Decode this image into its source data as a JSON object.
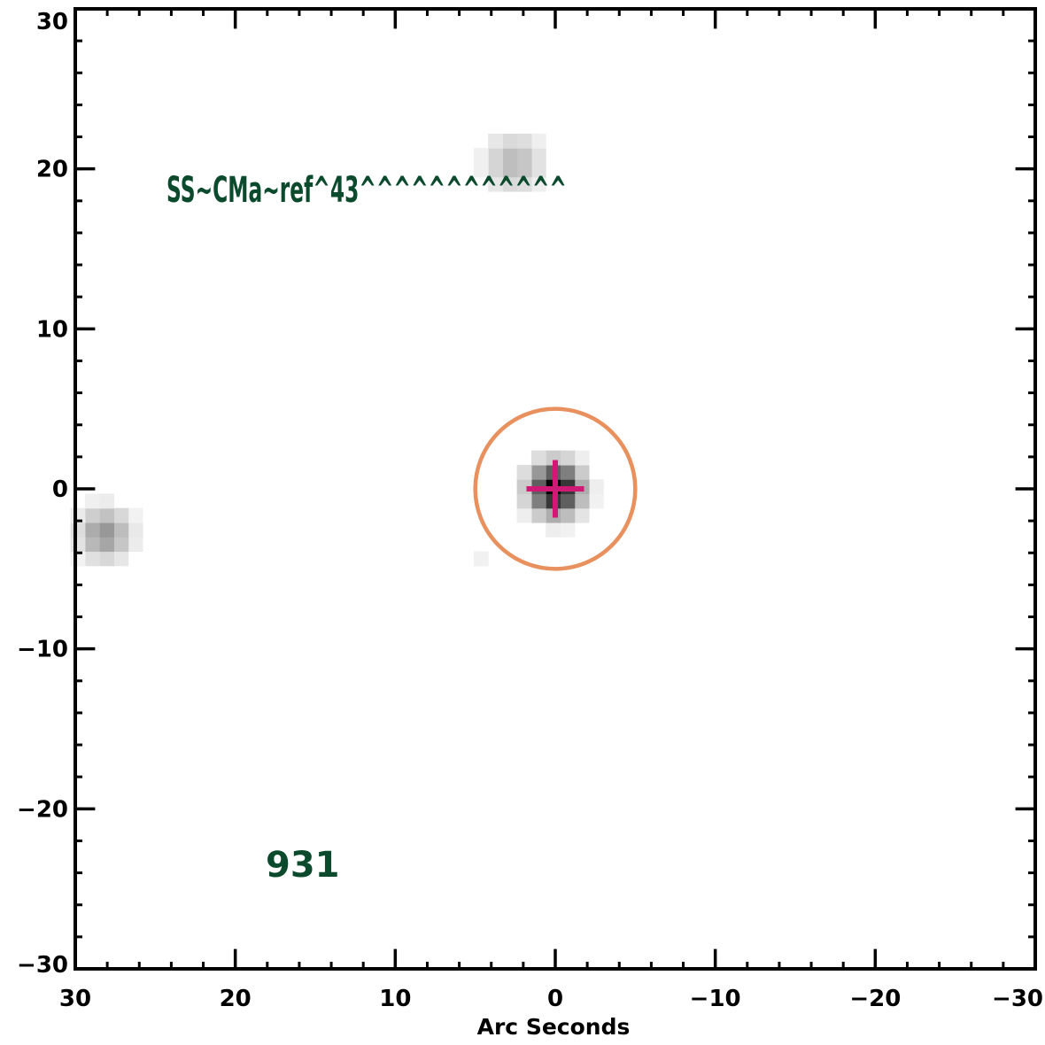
{
  "axes": {
    "x": {
      "label": "Arc Seconds",
      "range": [
        30,
        -30
      ],
      "ticks": [
        {
          "value": 30,
          "label": "30"
        },
        {
          "value": 20,
          "label": "20"
        },
        {
          "value": 10,
          "label": "10"
        },
        {
          "value": 0,
          "label": "0"
        },
        {
          "value": -10,
          "label": "−10"
        },
        {
          "value": -20,
          "label": "−20"
        },
        {
          "value": -30,
          "label": "−30"
        }
      ],
      "minor_step": 2
    },
    "y": {
      "label": "",
      "range": [
        -30,
        30
      ],
      "ticks": [
        {
          "value": 30,
          "label": "30"
        },
        {
          "value": 20,
          "label": "20"
        },
        {
          "value": 10,
          "label": "10"
        },
        {
          "value": 0,
          "label": "0"
        },
        {
          "value": -10,
          "label": "−10"
        },
        {
          "value": -20,
          "label": "−20"
        },
        {
          "value": -30,
          "label": "−30"
        }
      ],
      "minor_step": 2
    }
  },
  "annotations": {
    "object_name": "SS~CMa~ref^43^^^^^^^^^^^^",
    "id_number": "931"
  },
  "image": {
    "colormap": "grayscale-inverted",
    "pixel_size_arcsec": 0.9,
    "sources": [
      {
        "name": "central-source",
        "x": 0.0,
        "y": 0.0,
        "peak": 1.0,
        "sigma": 1.1
      },
      {
        "name": "north-source",
        "x": 2.6,
        "y": 20.4,
        "peak": 0.28,
        "sigma": 1.2
      },
      {
        "name": "west-source",
        "x": 28.2,
        "y": -2.8,
        "peak": 0.42,
        "sigma": 1.1
      },
      {
        "name": "faint-pixel",
        "x": 4.3,
        "y": -4.6,
        "peak": 0.1,
        "sigma": 0.4
      }
    ]
  },
  "markers": {
    "aperture": {
      "x": 0,
      "y": 0,
      "radius_arcsec": 5.0,
      "color": "#e8915e"
    },
    "crosshair": {
      "x": 0,
      "y": 0,
      "arm_arcsec": 1.8,
      "color": "#d01875"
    }
  }
}
